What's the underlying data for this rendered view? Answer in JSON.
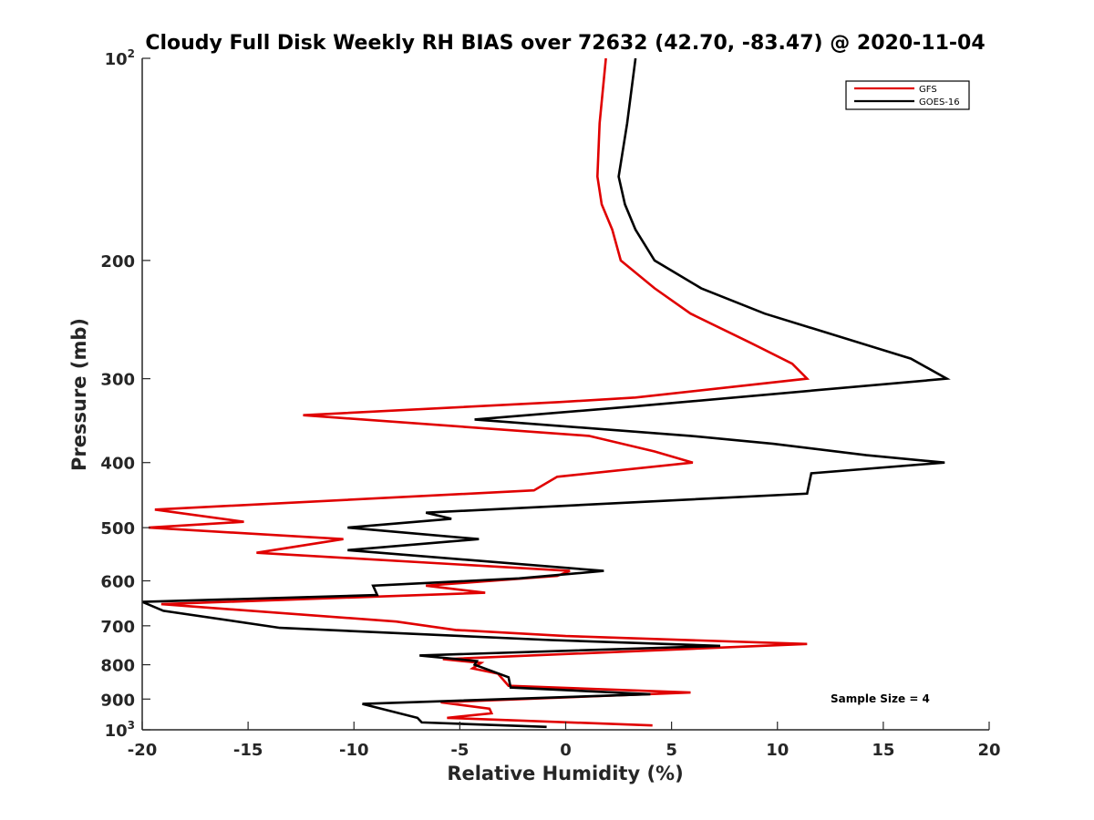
{
  "chart_data": {
    "type": "line",
    "title": "Cloudy Full Disk Weekly RH BIAS over 72632 (42.70, -83.47) @ 2020-11-04",
    "xlabel": "Relative Humidity (%)",
    "ylabel": "Pressure (mb)",
    "xlim": [
      -20,
      20
    ],
    "ylim": [
      100,
      1000
    ],
    "y_scale": "log",
    "y_reversed": true,
    "x_ticks": [
      -20,
      -15,
      -10,
      -5,
      0,
      5,
      10,
      15,
      20
    ],
    "x_tick_labels": [
      "-20",
      "-15",
      "-10",
      "-5",
      "0",
      "5",
      "10",
      "15",
      "20"
    ],
    "y_ticks": [
      {
        "value": 100,
        "base": "10",
        "exp": "2"
      },
      {
        "value": 200,
        "label": "200"
      },
      {
        "value": 300,
        "label": "300"
      },
      {
        "value": 400,
        "label": "400"
      },
      {
        "value": 500,
        "label": "500"
      },
      {
        "value": 600,
        "label": "600"
      },
      {
        "value": 700,
        "label": "700"
      },
      {
        "value": 800,
        "label": "800"
      },
      {
        "value": 900,
        "label": "900"
      },
      {
        "value": 1000,
        "base": "10",
        "exp": "3"
      }
    ],
    "legend": {
      "placement": "top-right"
    },
    "annotation": "Sample Size = 4",
    "series": [
      {
        "name": "GFS",
        "color": "#e00000",
        "points": [
          [
            1.9,
            100
          ],
          [
            1.6,
            125
          ],
          [
            1.5,
            150
          ],
          [
            1.7,
            165
          ],
          [
            2.2,
            180
          ],
          [
            2.6,
            200
          ],
          [
            4.2,
            220
          ],
          [
            5.9,
            240
          ],
          [
            8.7,
            265
          ],
          [
            10.7,
            285
          ],
          [
            11.4,
            300
          ],
          [
            3.3,
            320
          ],
          [
            -0.3,
            325
          ],
          [
            -12.4,
            340
          ],
          [
            1.1,
            365
          ],
          [
            4.2,
            385
          ],
          [
            6.0,
            400
          ],
          [
            -0.4,
            420
          ],
          [
            -1.5,
            440
          ],
          [
            -19.4,
            470
          ],
          [
            -15.2,
            490
          ],
          [
            -19.7,
            500
          ],
          [
            -10.5,
            520
          ],
          [
            -14.6,
            545
          ],
          [
            0.2,
            580
          ],
          [
            -0.4,
            590
          ],
          [
            -6.6,
            610
          ],
          [
            -3.8,
            625
          ],
          [
            -19.1,
            650
          ],
          [
            -8.0,
            690
          ],
          [
            -5.2,
            710
          ],
          [
            0.0,
            725
          ],
          [
            11.4,
            745
          ],
          [
            -5.8,
            785
          ],
          [
            -4.0,
            795
          ],
          [
            -4.4,
            810
          ],
          [
            -3.2,
            825
          ],
          [
            -2.7,
            860
          ],
          [
            5.9,
            880
          ],
          [
            -5.9,
            910
          ],
          [
            -3.6,
            930
          ],
          [
            -3.5,
            945
          ],
          [
            -5.6,
            960
          ],
          [
            4.1,
            985
          ]
        ]
      },
      {
        "name": "GOES-16",
        "color": "#000000",
        "points": [
          [
            3.3,
            100
          ],
          [
            2.9,
            125
          ],
          [
            2.5,
            150
          ],
          [
            2.8,
            165
          ],
          [
            3.3,
            180
          ],
          [
            4.2,
            200
          ],
          [
            6.4,
            220
          ],
          [
            9.4,
            240
          ],
          [
            16.3,
            280
          ],
          [
            18.0,
            300
          ],
          [
            3.2,
            330
          ],
          [
            -4.3,
            345
          ],
          [
            5.9,
            365
          ],
          [
            9.8,
            375
          ],
          [
            14.2,
            390
          ],
          [
            17.9,
            400
          ],
          [
            11.6,
            415
          ],
          [
            11.4,
            445
          ],
          [
            -6.6,
            475
          ],
          [
            -5.4,
            485
          ],
          [
            -10.3,
            500
          ],
          [
            -4.1,
            520
          ],
          [
            -10.3,
            540
          ],
          [
            1.8,
            580
          ],
          [
            -2.2,
            595
          ],
          [
            -9.1,
            610
          ],
          [
            -8.9,
            630
          ],
          [
            -20.0,
            645
          ],
          [
            -19.0,
            665
          ],
          [
            -13.5,
            705
          ],
          [
            -0.7,
            735
          ],
          [
            7.3,
            750
          ],
          [
            -6.9,
            775
          ],
          [
            -4.2,
            790
          ],
          [
            -4.3,
            800
          ],
          [
            -2.7,
            835
          ],
          [
            -2.6,
            865
          ],
          [
            4.0,
            885
          ],
          [
            -9.6,
            915
          ],
          [
            -7.0,
            960
          ],
          [
            -6.8,
            975
          ],
          [
            -0.9,
            990
          ]
        ]
      }
    ]
  }
}
